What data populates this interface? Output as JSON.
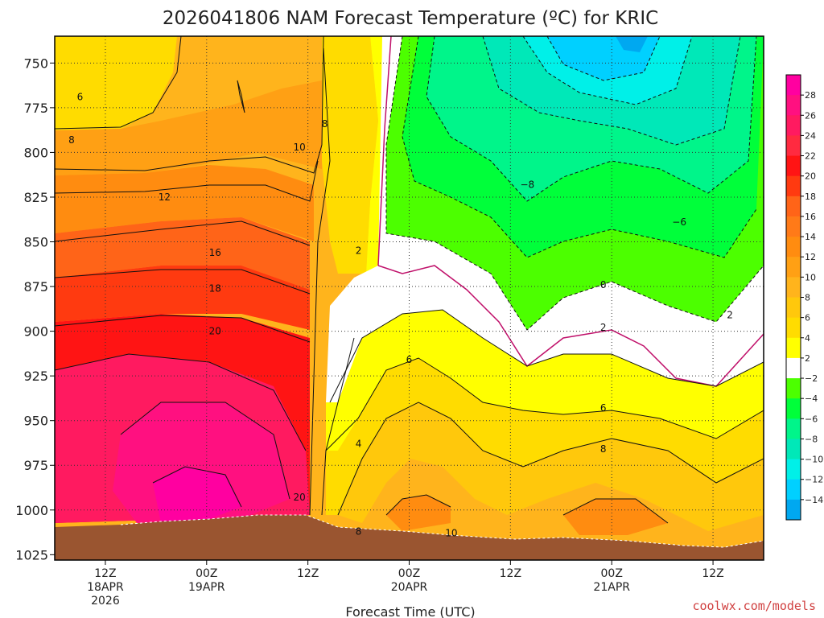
{
  "chart_data": {
    "type": "heatmap",
    "title": "2026041806 NAM Forecast Temperature (ºC) for KRIC",
    "xlabel": "Forecast Time (UTC)",
    "ylabel": "",
    "y_axis": {
      "ticks": [
        "750",
        "775",
        "800",
        "825",
        "850",
        "875",
        "900",
        "925",
        "950",
        "975",
        "1000",
        "1025"
      ],
      "range": [
        735,
        1028
      ],
      "inverted": true
    },
    "x_axis": {
      "ticks": [
        {
          "hour": 6,
          "line1": "12Z",
          "line2": "18APR",
          "line3": "2026"
        },
        {
          "hour": 18,
          "line1": "00Z",
          "line2": "19APR",
          "line3": ""
        },
        {
          "hour": 30,
          "line1": "12Z",
          "line2": "",
          "line3": ""
        },
        {
          "hour": 42,
          "line1": "00Z",
          "line2": "20APR",
          "line3": ""
        },
        {
          "hour": 54,
          "line1": "12Z",
          "line2": "",
          "line3": ""
        },
        {
          "hour": 66,
          "line1": "00Z",
          "line2": "21APR",
          "line3": ""
        },
        {
          "hour": 78,
          "line1": "12Z",
          "line2": "",
          "line3": ""
        }
      ],
      "range_hours": [
        0,
        84
      ]
    },
    "grid": true,
    "colorbar": {
      "labels": [
        "28",
        "26",
        "24",
        "22",
        "20",
        "18",
        "16",
        "14",
        "12",
        "10",
        "8",
        "6",
        "4",
        "2",
        "−2",
        "−4",
        "−6",
        "−8",
        "−10",
        "−12",
        "−14"
      ],
      "colors": [
        "#ff00a0",
        "#ff1080",
        "#ff1a60",
        "#ff2a40",
        "#ff1414",
        "#ff3a10",
        "#ff6418",
        "#ff7a18",
        "#ff8c10",
        "#ffa014",
        "#ffb41c",
        "#ffc80c",
        "#ffdc00",
        "#ffff00",
        "#ffffff",
        "#4cff00",
        "#00ff3a",
        "#00f58a",
        "#00e8b8",
        "#00f0e8",
        "#00d0ff",
        "#00a8f0"
      ]
    },
    "contour_labels": [
      {
        "text": "6",
        "hour": 3,
        "p": 769
      },
      {
        "text": "8",
        "hour": 2,
        "p": 793
      },
      {
        "text": "12",
        "hour": 13,
        "p": 825
      },
      {
        "text": "16",
        "hour": 19,
        "p": 856
      },
      {
        "text": "18",
        "hour": 19,
        "p": 876
      },
      {
        "text": "20",
        "hour": 19,
        "p": 900
      },
      {
        "text": "20",
        "hour": 29,
        "p": 993
      },
      {
        "text": "10",
        "hour": 29,
        "p": 797
      },
      {
        "text": "8",
        "hour": 32,
        "p": 784
      },
      {
        "text": "2",
        "hour": 36,
        "p": 855
      },
      {
        "text": "4",
        "hour": 36,
        "p": 963
      },
      {
        "text": "8",
        "hour": 36,
        "p": 1012
      },
      {
        "text": "6",
        "hour": 42,
        "p": 916
      },
      {
        "text": "10",
        "hour": 47,
        "p": 1013
      },
      {
        "text": "−8",
        "hour": 56,
        "p": 818
      },
      {
        "text": "−6",
        "hour": 74,
        "p": 839
      },
      {
        "text": "0",
        "hour": 65,
        "p": 874
      },
      {
        "text": "2",
        "hour": 65,
        "p": 898
      },
      {
        "text": "2",
        "hour": 80,
        "p": 891
      },
      {
        "text": "6",
        "hour": 65,
        "p": 943
      },
      {
        "text": "8",
        "hour": 65,
        "p": 966
      }
    ]
  },
  "credit": "coolwx.com/models"
}
